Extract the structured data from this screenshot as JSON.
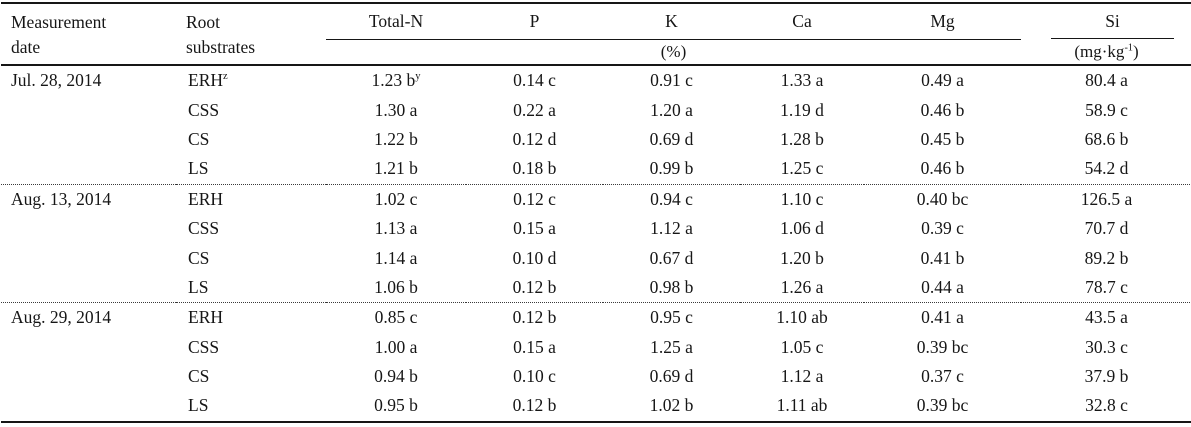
{
  "table": {
    "header": {
      "col_date": "Measurement\ndate",
      "col_substrate": "Root\nsubstrates",
      "nutrients": [
        "Total-N",
        "P",
        "K",
        "Ca",
        "Mg"
      ],
      "nutrient_unit": "(%)",
      "si_label": "Si",
      "si_unit_prefix": "(mg·kg",
      "si_unit_sup": "-1",
      "si_unit_suffix": ")",
      "nutrient_keys": [
        "total-n",
        "p",
        "k",
        "ca",
        "mg",
        "si"
      ]
    },
    "groups": [
      {
        "date": "Jul. 28, 2014",
        "rows": [
          {
            "substrate": "ERH",
            "substrate_sup": "z",
            "values": [
              "1.23 b",
              "0.14 c",
              "0.91 c",
              "1.33 a",
              "0.49 a",
              "80.4 a"
            ],
            "value_sups": [
              "y",
              "",
              "",
              "",
              "",
              ""
            ]
          },
          {
            "substrate": "CSS",
            "values": [
              "1.30 a",
              "0.22 a",
              "1.20 a",
              "1.19 d",
              "0.46 b",
              "58.9 c"
            ]
          },
          {
            "substrate": "CS",
            "values": [
              "1.22 b",
              "0.12 d",
              "0.69 d",
              "1.28 b",
              "0.45 b",
              "68.6 b"
            ]
          },
          {
            "substrate": "LS",
            "values": [
              "1.21 b",
              "0.18 b",
              "0.99 b",
              "1.25 c",
              "0.46 b",
              "54.2 d"
            ]
          }
        ]
      },
      {
        "date": "Aug. 13, 2014",
        "rows": [
          {
            "substrate": "ERH",
            "values": [
              "1.02 c",
              "0.12 c",
              "0.94 c",
              "1.10 c",
              "0.40 bc",
              "126.5 a"
            ]
          },
          {
            "substrate": "CSS",
            "values": [
              "1.13 a",
              "0.15 a",
              "1.12 a",
              "1.06 d",
              "0.39 c",
              "70.7 d"
            ]
          },
          {
            "substrate": "CS",
            "values": [
              "1.14 a",
              "0.10 d",
              "0.67 d",
              "1.20 b",
              "0.41 b",
              "89.2 b"
            ]
          },
          {
            "substrate": "LS",
            "values": [
              "1.06 b",
              "0.12 b",
              "0.98 b",
              "1.26 a",
              "0.44 a",
              "78.7 c"
            ]
          }
        ]
      },
      {
        "date": "Aug. 29, 2014",
        "rows": [
          {
            "substrate": "ERH",
            "values": [
              "0.85 c",
              "0.12 b",
              "0.95 c",
              "1.10 ab",
              "0.41 a",
              "43.5 a"
            ]
          },
          {
            "substrate": "CSS",
            "values": [
              "1.00 a",
              "0.15 a",
              "1.25 a",
              "1.05 c",
              "0.39 bc",
              "30.3 c"
            ]
          },
          {
            "substrate": "CS",
            "values": [
              "0.94 b",
              "0.10 c",
              "0.69 d",
              "1.12 a",
              "0.37 c",
              "37.9 b"
            ]
          },
          {
            "substrate": "LS",
            "values": [
              "0.95 b",
              "0.12 b",
              "1.02 b",
              "1.11 ab",
              "0.39 bc",
              "32.8 c"
            ]
          }
        ]
      }
    ]
  }
}
